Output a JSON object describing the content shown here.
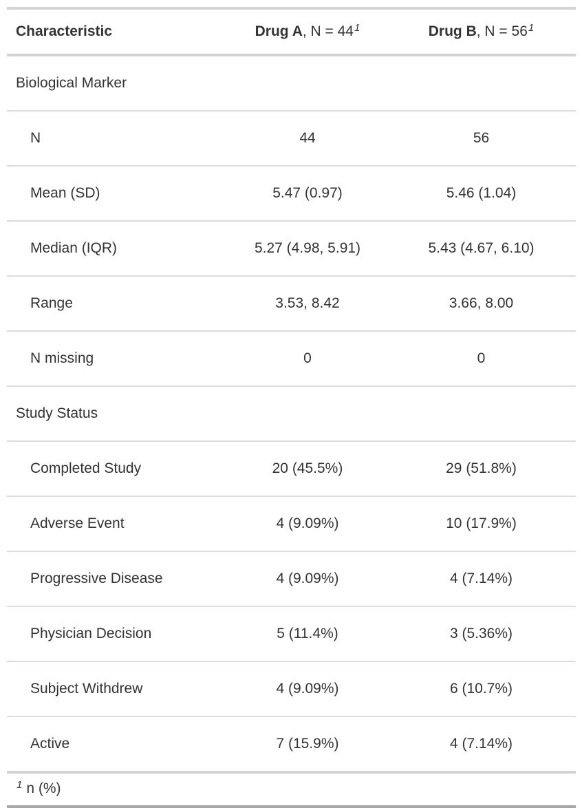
{
  "chart_data": {
    "type": "table",
    "columns": [
      "Characteristic",
      "Drug A, N = 44",
      "Drug B, N = 56"
    ],
    "rows": [
      {
        "label": "Biological Marker",
        "group": true,
        "drug_a": "",
        "drug_b": ""
      },
      {
        "label": "N",
        "group": false,
        "drug_a": "44",
        "drug_b": "56"
      },
      {
        "label": "Mean (SD)",
        "group": false,
        "drug_a": "5.47 (0.97)",
        "drug_b": "5.46 (1.04)"
      },
      {
        "label": "Median (IQR)",
        "group": false,
        "drug_a": "5.27 (4.98, 5.91)",
        "drug_b": "5.43 (4.67, 6.10)"
      },
      {
        "label": "Range",
        "group": false,
        "drug_a": "3.53, 8.42",
        "drug_b": "3.66, 8.00"
      },
      {
        "label": "N missing",
        "group": false,
        "drug_a": "0",
        "drug_b": "0"
      },
      {
        "label": "Study Status",
        "group": true,
        "drug_a": "",
        "drug_b": ""
      },
      {
        "label": "Completed Study",
        "group": false,
        "drug_a": "20 (45.5%)",
        "drug_b": "29 (51.8%)"
      },
      {
        "label": "Adverse Event",
        "group": false,
        "drug_a": "4 (9.09%)",
        "drug_b": "10 (17.9%)"
      },
      {
        "label": "Progressive Disease",
        "group": false,
        "drug_a": "4 (9.09%)",
        "drug_b": "4 (7.14%)"
      },
      {
        "label": "Physician Decision",
        "group": false,
        "drug_a": "5 (11.4%)",
        "drug_b": "3 (5.36%)"
      },
      {
        "label": "Subject Withdrew",
        "group": false,
        "drug_a": "4 (9.09%)",
        "drug_b": "6 (10.7%)"
      },
      {
        "label": "Active",
        "group": false,
        "drug_a": "7 (15.9%)",
        "drug_b": "4 (7.14%)"
      }
    ]
  },
  "header": {
    "characteristic": "Characteristic",
    "drug_a": {
      "bold": "Drug A",
      "rest": ", N = 44",
      "footnote_mark": "1"
    },
    "drug_b": {
      "bold": "Drug B",
      "rest": ", N = 56",
      "footnote_mark": "1"
    }
  },
  "footnote": {
    "mark": "1",
    "text": "n (%)"
  },
  "colors": {
    "text": "#333333",
    "border_light": "#D3D3D3",
    "border_row": "#DBDBDB",
    "border_bottom_dark": "#A8A8A8",
    "background": "#FFFFFF"
  }
}
